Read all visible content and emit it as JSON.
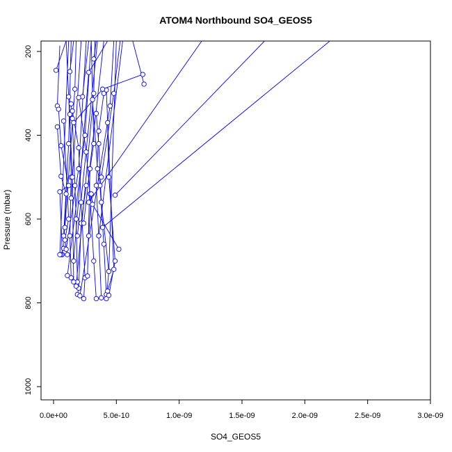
{
  "chart_data": {
    "type": "line",
    "title": "ATOM4 Northbound SO4_GEOS5",
    "xlabel": "SO4_GEOS5",
    "ylabel": "Pressure (mbar)",
    "xlim": [
      0,
      3e-09
    ],
    "ylim": [
      1000,
      200
    ],
    "y_inverted": true,
    "x_ticks": [
      0,
      5e-10,
      1e-09,
      1.5e-09,
      2e-09,
      2.5e-09,
      3e-09
    ],
    "x_tick_labels": [
      "0.0e+00",
      "5.0e-10",
      "1.0e-09",
      "1.5e-09",
      "2.0e-09",
      "2.5e-09",
      "3.0e-09"
    ],
    "y_ticks": [
      200,
      400,
      600,
      800,
      1000
    ],
    "y_tick_labels": [
      "200",
      "400",
      "600",
      "800",
      "1000"
    ],
    "series_color": "#0000ff",
    "marker": "open-circle",
    "grid": false,
    "legend": "none",
    "series": [
      {
        "points": [
          [
            2e-11,
            245
          ],
          [
            1e-10,
            175
          ]
        ]
      },
      {
        "points": [
          [
            5e-11,
            186
          ],
          [
            3e-11,
            330
          ],
          [
            4e-11,
            338
          ],
          [
            6e-11,
            425
          ],
          [
            1.2e-10,
            520
          ],
          [
            5e-11,
            535
          ],
          [
            7e-11,
            685
          ]
        ]
      },
      {
        "points": [
          [
            1.3e-10,
            248
          ],
          [
            1.6e-10,
            175
          ]
        ]
      },
      {
        "points": [
          [
            3e-11,
            380
          ],
          [
            6e-11,
            498
          ],
          [
            1e-10,
            540
          ],
          [
            8e-11,
            670
          ],
          [
            6e-11,
            685
          ]
        ]
      },
      {
        "points": [
          [
            8e-11,
            366
          ],
          [
            1.2e-10,
            600
          ],
          [
            9e-11,
            650
          ],
          [
            1.1e-10,
            685
          ]
        ]
      },
      {
        "points": [
          [
            1.2e-10,
            308
          ],
          [
            1.3e-10,
            350
          ],
          [
            1.4e-10,
            500
          ],
          [
            1.3e-10,
            640
          ],
          [
            1.4e-10,
            740
          ]
        ]
      },
      {
        "points": [
          [
            2.3e-10,
            308
          ],
          [
            2.8e-10,
            175
          ]
        ]
      },
      {
        "points": [
          [
            1.4e-10,
            325
          ],
          [
            1.5e-10,
            360
          ],
          [
            1.7e-10,
            520
          ],
          [
            1.8e-10,
            600
          ],
          [
            1.9e-10,
            750
          ]
        ]
      },
      {
        "points": [
          [
            1.5e-10,
            342
          ],
          [
            2e-10,
            430
          ],
          [
            2.2e-10,
            560
          ],
          [
            2.5e-10,
            740
          ],
          [
            2.4e-10,
            790
          ]
        ]
      },
      {
        "points": [
          [
            2e-10,
            310
          ],
          [
            2.6e-10,
            440
          ],
          [
            2.9e-10,
            540
          ],
          [
            3.2e-10,
            700
          ],
          [
            3.4e-10,
            790
          ]
        ]
      },
      {
        "points": [
          [
            3.1e-10,
            315
          ],
          [
            3.5e-10,
            480
          ],
          [
            3.7e-10,
            520
          ],
          [
            4e-10,
            660
          ],
          [
            4.2e-10,
            780
          ]
        ]
      },
      {
        "points": [
          [
            3.2e-10,
            218
          ],
          [
            3.4e-10,
            175
          ]
        ]
      },
      {
        "points": [
          [
            3.4e-10,
            348
          ],
          [
            3.6e-10,
            420
          ],
          [
            3.8e-10,
            560
          ],
          [
            4.4e-10,
            725
          ],
          [
            4.2e-10,
            790
          ]
        ]
      },
      {
        "points": [
          [
            4e-10,
            300
          ],
          [
            3.6e-10,
            390
          ],
          [
            3.4e-10,
            520
          ],
          [
            3.6e-10,
            640
          ],
          [
            3.8e-10,
            788
          ]
        ]
      },
      {
        "points": [
          [
            4.2e-10,
            292
          ],
          [
            4.8e-10,
            720
          ],
          [
            4.3e-10,
            772
          ]
        ]
      },
      {
        "points": [
          [
            4.3e-10,
            370
          ],
          [
            4.4e-10,
            500
          ],
          [
            4.9e-10,
            700
          ],
          [
            4.4e-10,
            782
          ]
        ]
      },
      {
        "points": [
          [
            7.2e-10,
            278
          ],
          [
            6.3e-10,
            175
          ]
        ]
      },
      {
        "points": [
          [
            2.8e-10,
            560
          ],
          [
            1.18e-09,
            175
          ]
        ]
      },
      {
        "points": [
          [
            4.9e-10,
            543
          ],
          [
            1.68e-09,
            175
          ]
        ]
      },
      {
        "points": [
          [
            3.9e-10,
            620
          ],
          [
            2.2e-09,
            175
          ]
        ]
      },
      {
        "points": [
          [
            2.6e-10,
            520
          ],
          [
            2.2e-10,
            610
          ],
          [
            2e-10,
            765
          ],
          [
            1.9e-10,
            780
          ]
        ]
      },
      {
        "points": [
          [
            2.7e-10,
            736
          ],
          [
            2.9e-10,
            480
          ],
          [
            3.2e-10,
            420
          ],
          [
            3e-10,
            175
          ]
        ]
      },
      {
        "points": [
          [
            2.8e-10,
            640
          ],
          [
            3e-10,
            540
          ],
          [
            3.1e-10,
            565
          ],
          [
            5.2e-10,
            672
          ]
        ]
      },
      {
        "points": [
          [
            1e-10,
            672
          ],
          [
            2e-10,
            480
          ],
          [
            2.6e-10,
            175
          ]
        ]
      },
      {
        "points": [
          [
            1.4e-10,
            550
          ],
          [
            2.2e-10,
            175
          ]
        ]
      },
      {
        "points": [
          [
            1.9e-10,
            640
          ],
          [
            3.5e-10,
            175
          ]
        ]
      },
      {
        "points": [
          [
            2.4e-10,
            610
          ],
          [
            4e-10,
            175
          ]
        ]
      },
      {
        "points": [
          [
            3.6e-10,
            640
          ],
          [
            5.5e-10,
            175
          ]
        ]
      },
      {
        "points": [
          [
            1.6e-10,
            750
          ],
          [
            1.5e-10,
            500
          ],
          [
            1e-10,
            175
          ]
        ]
      },
      {
        "points": [
          [
            1.1e-10,
            735
          ],
          [
            2.5e-10,
            400
          ],
          [
            3e-10,
            175
          ]
        ]
      },
      {
        "points": [
          [
            1.8e-10,
            760
          ],
          [
            3.2e-10,
            300
          ],
          [
            3.3e-10,
            175
          ]
        ]
      },
      {
        "points": [
          [
            2.1e-10,
            783
          ],
          [
            4.5e-10,
            330
          ],
          [
            4.8e-10,
            175
          ]
        ]
      },
      {
        "points": [
          [
            4.4e-10,
            725
          ],
          [
            5e-10,
            175
          ]
        ]
      },
      {
        "points": [
          [
            8e-11,
            640
          ],
          [
            1.2e-10,
            420
          ],
          [
            1.4e-10,
            175
          ]
        ]
      },
      {
        "points": [
          [
            5e-11,
            685
          ],
          [
            1.2e-10,
            175
          ]
        ]
      },
      {
        "points": [
          [
            1.6e-10,
            700
          ],
          [
            2.8e-10,
            250
          ],
          [
            4.3e-10,
            175
          ]
        ]
      },
      {
        "points": [
          [
            3.8e-10,
            500
          ],
          [
            4.8e-10,
            300
          ],
          [
            5.3e-10,
            175
          ]
        ]
      },
      {
        "points": [
          [
            9e-11,
            620
          ],
          [
            1.7e-10,
            290
          ],
          [
            1.8e-10,
            175
          ]
        ]
      },
      {
        "points": [
          [
            1.6e-10,
            370
          ],
          [
            3.9e-10,
            290
          ],
          [
            7.1e-10,
            255
          ]
        ]
      }
    ]
  }
}
